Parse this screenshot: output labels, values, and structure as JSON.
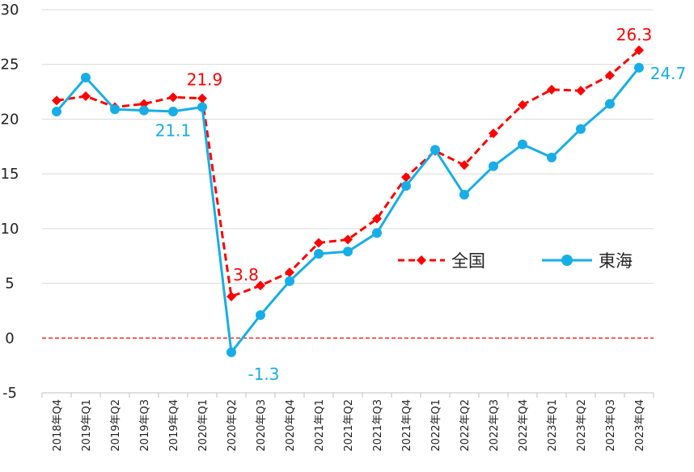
{
  "chart_data": {
    "type": "line",
    "categories": [
      "2018年Q4",
      "2019年Q1",
      "2019年Q2",
      "2019年Q3",
      "2019年Q4",
      "2020年Q1",
      "2020年Q2",
      "2020年Q3",
      "2020年Q4",
      "2021年Q1",
      "2021年Q2",
      "2021年Q3",
      "2021年Q4",
      "2022年Q1",
      "2022年Q2",
      "2022年Q3",
      "2022年Q4",
      "2023年Q1",
      "2023年Q2",
      "2023年Q3",
      "2023年Q4"
    ],
    "ylim": [
      -5,
      30
    ],
    "yticks": [
      "30",
      "25",
      "20",
      "15",
      "10",
      "5",
      "0",
      "-5"
    ],
    "grid": "horizontal",
    "zero_line": "dashed",
    "legend_position": "center-right",
    "series": [
      {
        "name": "全国",
        "color": "#ff0000",
        "style": "dashed",
        "marker": "diamond",
        "values": [
          21.7,
          22.1,
          21.1,
          21.4,
          22.0,
          21.9,
          3.8,
          4.8,
          6.0,
          8.7,
          9.0,
          10.9,
          14.7,
          17.1,
          15.8,
          18.7,
          21.3,
          22.7,
          22.6,
          24.0,
          26.3
        ],
        "labels": [
          {
            "text": "21.9",
            "index": 5
          },
          {
            "text": "3.8",
            "index": 6
          },
          {
            "text": "26.3",
            "index": 20
          }
        ]
      },
      {
        "name": "東海",
        "color": "#17aee8",
        "style": "solid",
        "marker": "circle",
        "values": [
          20.7,
          23.8,
          20.9,
          20.8,
          20.7,
          21.1,
          -1.3,
          2.1,
          5.2,
          7.7,
          7.9,
          9.6,
          13.9,
          17.2,
          13.1,
          15.7,
          17.7,
          16.5,
          19.1,
          21.4,
          24.7
        ],
        "labels": [
          {
            "text": "21.1",
            "index": 5
          },
          {
            "text": "-1.3",
            "index": 6
          },
          {
            "text": "24.7",
            "index": 20
          }
        ]
      }
    ]
  }
}
